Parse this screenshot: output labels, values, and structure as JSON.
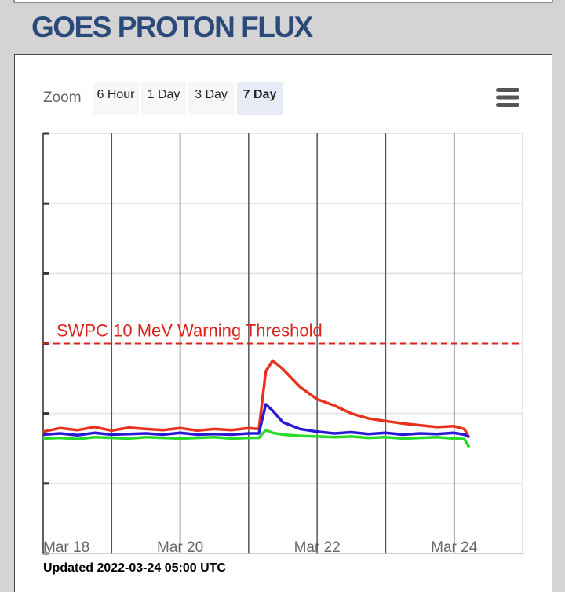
{
  "header": {
    "title": "GOES PROTON FLUX"
  },
  "zoom": {
    "label": "Zoom",
    "buttons": [
      "6 Hour",
      "1 Day",
      "3 Day",
      "7 Day"
    ],
    "selected": 3
  },
  "chart_data": {
    "type": "line",
    "yscale": "log",
    "grid": true,
    "xlim": [
      18,
      25
    ],
    "xticks": [
      {
        "value": 18,
        "label": "Mar 18"
      },
      {
        "value": 19,
        "label": null
      },
      {
        "value": 20,
        "label": "Mar 20"
      },
      {
        "value": 21,
        "label": null
      },
      {
        "value": 22,
        "label": "Mar 22"
      },
      {
        "value": 23,
        "label": null
      },
      {
        "value": 24,
        "label": "Mar 24"
      }
    ],
    "ylim": [
      0.01,
      10000
    ],
    "yticks": [
      0.01,
      0.1,
      1,
      10,
      100,
      1000,
      10000
    ],
    "annotations": [
      {
        "label": "SWPC 10 MeV Warning Threshold",
        "value": 10,
        "color": "#d9261c"
      }
    ],
    "x": [
      18,
      18.25,
      18.5,
      18.75,
      19,
      19.25,
      19.5,
      19.75,
      20,
      20.25,
      20.5,
      20.75,
      21,
      21.15,
      21.25,
      21.35,
      21.5,
      21.75,
      22,
      22.25,
      22.5,
      22.75,
      23,
      23.25,
      23.5,
      23.75,
      24,
      24.15,
      24.22
    ],
    "series": [
      {
        "color": "#e8321e",
        "values": [
          0.55,
          0.62,
          0.58,
          0.64,
          0.57,
          0.63,
          0.6,
          0.58,
          0.62,
          0.57,
          0.6,
          0.58,
          0.62,
          0.6,
          4.0,
          5.7,
          4.3,
          2.4,
          1.6,
          1.3,
          1.0,
          0.85,
          0.78,
          0.72,
          0.68,
          0.64,
          0.66,
          0.6,
          0.45
        ]
      },
      {
        "color": "#2a1ad6",
        "values": [
          0.5,
          0.52,
          0.49,
          0.53,
          0.5,
          0.51,
          0.52,
          0.5,
          0.53,
          0.5,
          0.51,
          0.5,
          0.52,
          0.52,
          1.35,
          1.1,
          0.75,
          0.6,
          0.55,
          0.52,
          0.54,
          0.51,
          0.53,
          0.5,
          0.52,
          0.51,
          0.53,
          0.5,
          0.46
        ]
      },
      {
        "color": "#2bdb2b",
        "values": [
          0.44,
          0.45,
          0.43,
          0.46,
          0.45,
          0.44,
          0.46,
          0.45,
          0.44,
          0.45,
          0.46,
          0.44,
          0.45,
          0.45,
          0.58,
          0.53,
          0.5,
          0.48,
          0.47,
          0.46,
          0.47,
          0.45,
          0.46,
          0.44,
          0.45,
          0.46,
          0.44,
          0.43,
          0.33
        ]
      }
    ]
  },
  "footer": {
    "updated": "Updated 2022-03-24 05:00 UTC"
  }
}
